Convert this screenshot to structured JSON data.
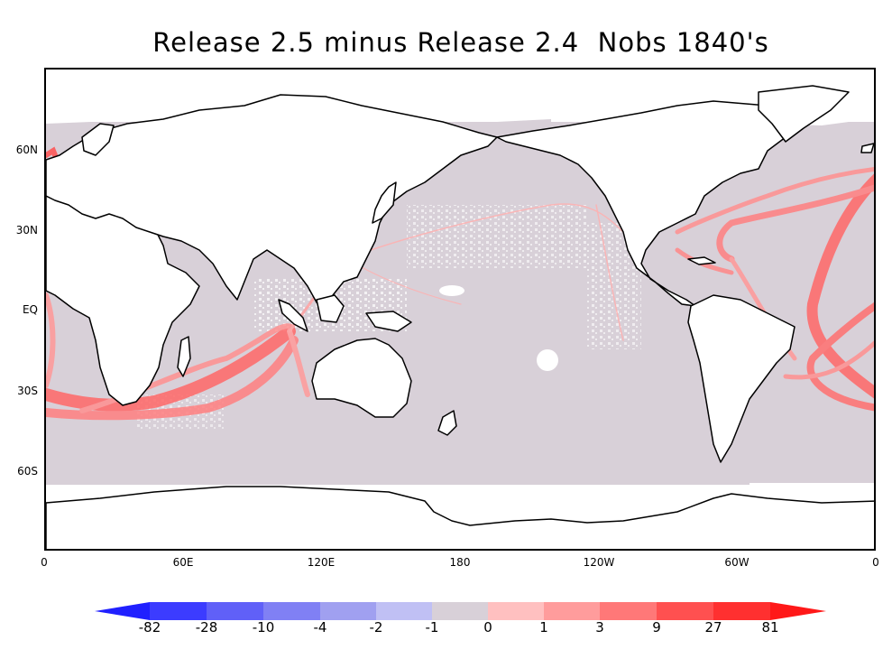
{
  "title": "Release 2.5 minus Release 2.4  Nobs 1840's",
  "y_axis": {
    "ticks": [
      "60N",
      "30N",
      "EQ",
      "30S",
      "60S"
    ]
  },
  "x_axis": {
    "ticks": [
      "0",
      "60E",
      "120E",
      "180",
      "120W",
      "60W",
      "0"
    ]
  },
  "colorbar": {
    "labels": [
      "-82",
      "-28",
      "-10",
      "-4",
      "-2",
      "-1",
      "0",
      "1",
      "3",
      "9",
      "27",
      "81"
    ],
    "colors": [
      "#2020ff",
      "#3c3cff",
      "#6060f8",
      "#8080f4",
      "#a0a0f0",
      "#c0c0f4",
      "#d8d0d8",
      "#ffc0c0",
      "#ff9c9c",
      "#ff7878",
      "#ff5050",
      "#ff3030",
      "#ff1818"
    ]
  },
  "map_colors": {
    "ocean_gray": "#d8d0d8",
    "route_red": "#ff6060",
    "route_red_light": "#ffa0a0",
    "coast": "#000000"
  }
}
